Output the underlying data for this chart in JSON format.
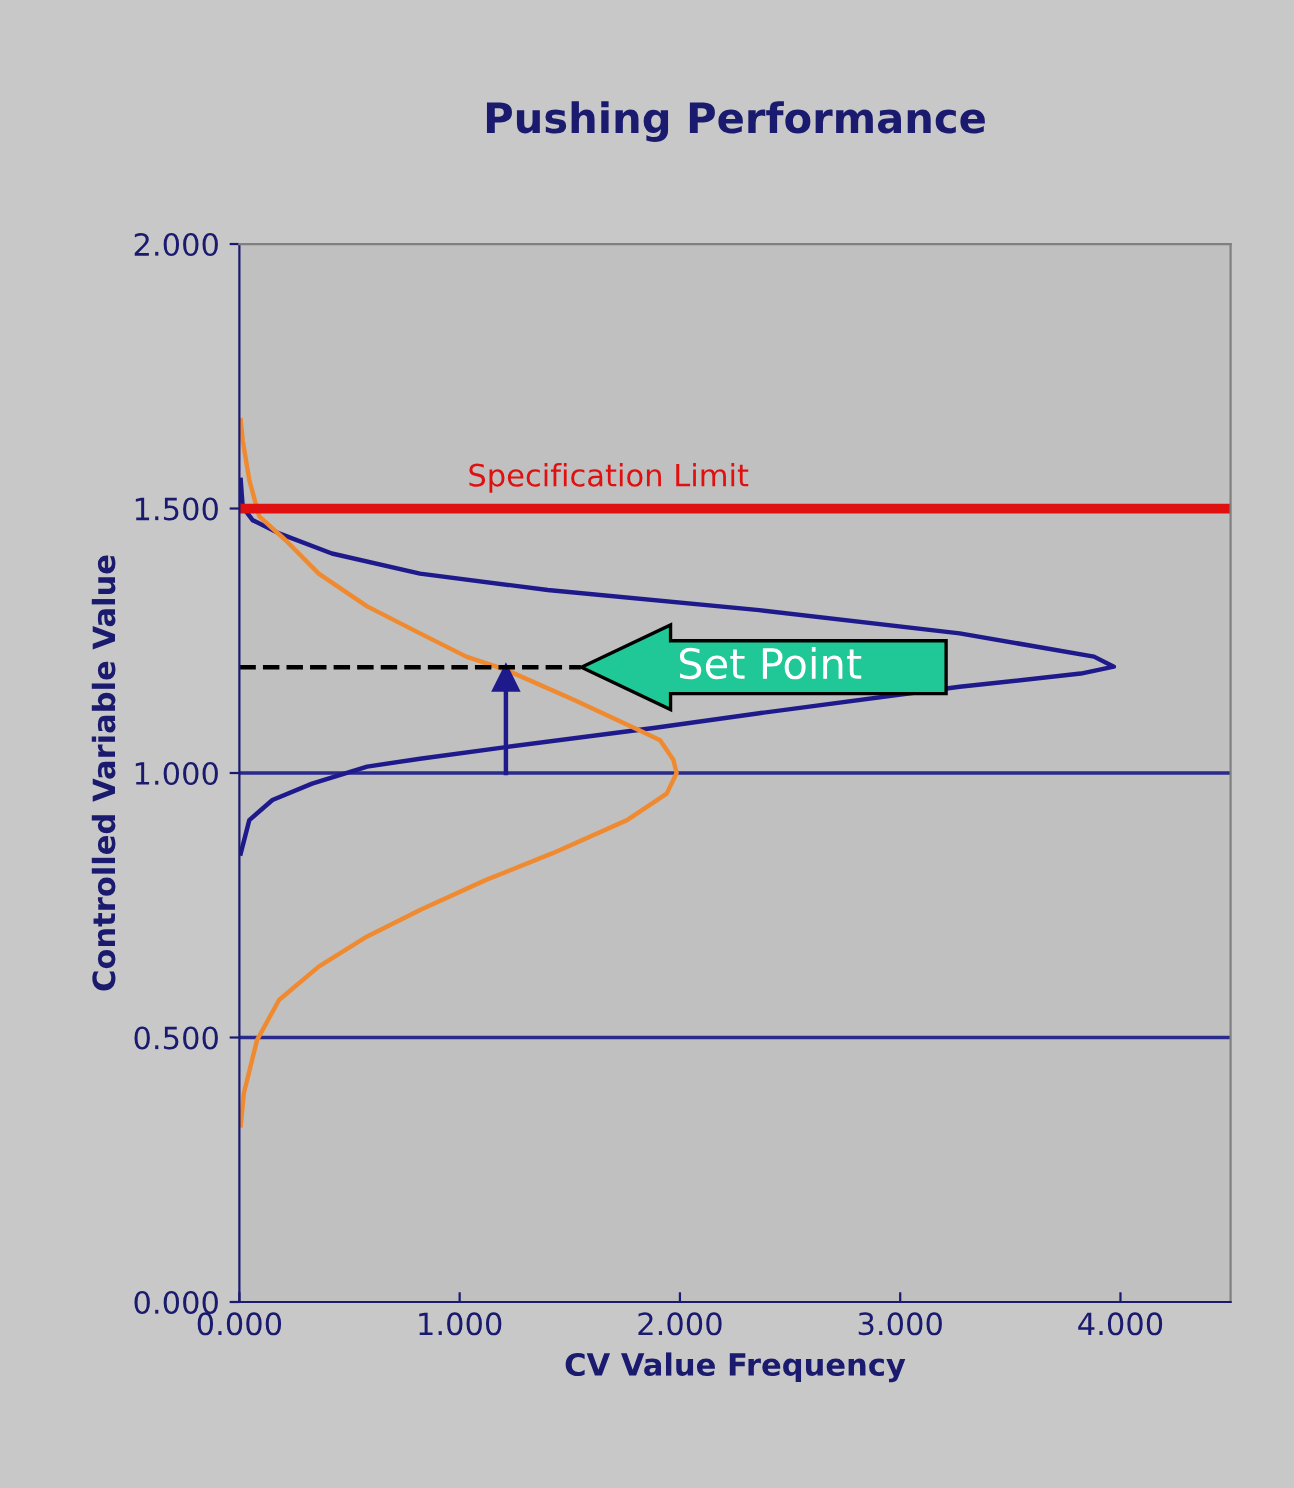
{
  "chart_data": {
    "type": "line",
    "title": "Pushing Performance",
    "xlabel": "CV Value Frequency",
    "ylabel": "Controlled Variable Value",
    "xlim": [
      0,
      4.5
    ],
    "xticks": [
      {
        "value": 0,
        "label": "0.000"
      },
      {
        "value": 1,
        "label": "1.000"
      },
      {
        "value": 2,
        "label": "2.000"
      },
      {
        "value": 3,
        "label": "3.000"
      },
      {
        "value": 4,
        "label": "4.000"
      }
    ],
    "ylim": [
      0,
      2
    ],
    "yticks": [
      {
        "value": 0,
        "label": "0.000"
      },
      {
        "value": 0.5,
        "label": "0.500"
      },
      {
        "value": 1,
        "label": "1.000"
      },
      {
        "value": 1.5,
        "label": "1.500"
      },
      {
        "value": 2,
        "label": "2.000"
      }
    ],
    "grid": false,
    "series": [
      {
        "color": "#1f1a8c",
        "x": [
          0.006,
          0.045,
          0.15,
          0.33,
          0.58,
          0.82,
          1.21,
          1.88,
          2.36,
          3.27,
          3.82,
          3.97,
          3.88,
          3.27,
          2.36,
          1.4,
          0.82,
          0.42,
          0.18,
          0.06,
          0.015,
          0.006
        ],
        "values": [
          0.848,
          0.911,
          0.949,
          0.98,
          1.012,
          1.027,
          1.049,
          1.085,
          1.113,
          1.163,
          1.188,
          1.201,
          1.22,
          1.264,
          1.308,
          1.346,
          1.377,
          1.415,
          1.453,
          1.478,
          1.503,
          1.554
        ]
      },
      {
        "color": "#f08a30",
        "x": [
          0.006,
          0.02,
          0.08,
          0.18,
          0.36,
          0.58,
          0.82,
          1.12,
          1.42,
          1.76,
          1.94,
          1.985,
          1.97,
          1.91,
          1.82,
          1.52,
          1.21,
          1.03,
          0.82,
          0.58,
          0.36,
          0.21,
          0.09,
          0.045,
          0.015,
          0.006
        ],
        "values": [
          0.334,
          0.394,
          0.495,
          0.571,
          0.634,
          0.691,
          0.741,
          0.798,
          0.848,
          0.911,
          0.961,
          1.0,
          1.025,
          1.062,
          1.08,
          1.138,
          1.195,
          1.22,
          1.264,
          1.315,
          1.377,
          1.44,
          1.485,
          1.554,
          1.629,
          1.667
        ]
      },
      {
        "color": "#1f1a8c",
        "marker": "triangle",
        "x": [
          1.21,
          1.21
        ],
        "values": [
          1.0,
          1.18
        ]
      },
      {
        "color": "#000000",
        "line_style": "dashed",
        "x": [
          0,
          1.55
        ],
        "values": [
          1.2,
          1.2
        ]
      }
    ],
    "ref_lines": [
      {
        "axis": "y",
        "value": 0.5,
        "color": "#2a2a8c",
        "line_style": "solid"
      },
      {
        "axis": "y",
        "value": 1.0,
        "color": "#2a2a8c",
        "line_style": "solid"
      },
      {
        "axis": "y",
        "value": 1.5,
        "label": "Specification Limit",
        "color": "#e01010",
        "line_style": "solid"
      }
    ],
    "annotations": [
      "Set Point"
    ]
  }
}
